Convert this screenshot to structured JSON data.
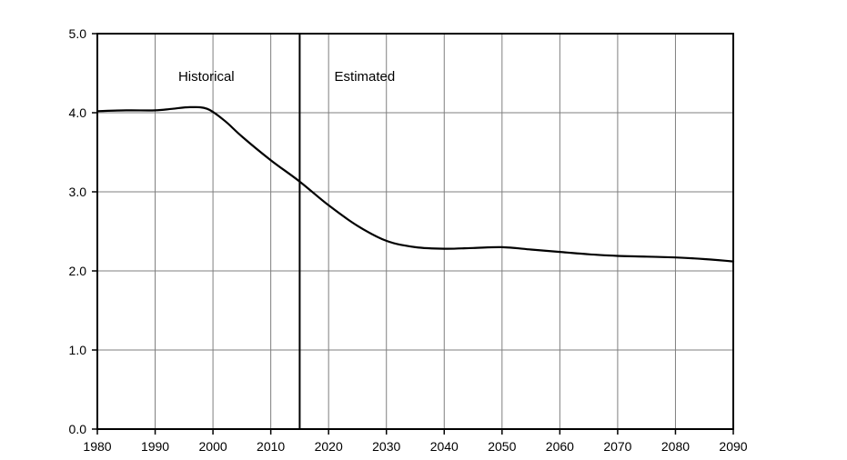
{
  "chart_data": {
    "type": "line",
    "title": "",
    "xlabel": "",
    "ylabel": "",
    "xlim": [
      1980,
      2090
    ],
    "ylim": [
      0,
      5
    ],
    "x_ticks": [
      1980,
      1990,
      2000,
      2010,
      2020,
      2030,
      2040,
      2050,
      2060,
      2070,
      2080,
      2090
    ],
    "x_tick_labels": [
      "1980",
      "1990",
      "2000",
      "2010",
      "2020",
      "2030",
      "2040",
      "2050",
      "2060",
      "2070",
      "2080",
      "2090"
    ],
    "y_ticks": [
      0,
      1,
      2,
      3,
      4,
      5
    ],
    "y_tick_labels": [
      "0.0",
      "1.0",
      "2.0",
      "3.0",
      "4.0",
      "5.0"
    ],
    "grid": true,
    "divider_x": 2015,
    "annotations": [
      {
        "text": "Historical",
        "x": 1994,
        "y": 4.4
      },
      {
        "text": "Estimated",
        "x": 2021,
        "y": 4.4
      }
    ],
    "series": [
      {
        "x": [
          1980,
          1985,
          1990,
          1993,
          1996,
          1999,
          2002,
          2005,
          2010,
          2015,
          2020,
          2025,
          2030,
          2035,
          2040,
          2045,
          2050,
          2055,
          2060,
          2065,
          2070,
          2075,
          2080,
          2085,
          2090
        ],
        "values": [
          4.02,
          4.03,
          4.03,
          4.05,
          4.07,
          4.05,
          3.9,
          3.7,
          3.4,
          3.13,
          2.83,
          2.57,
          2.38,
          2.3,
          2.28,
          2.29,
          2.3,
          2.27,
          2.24,
          2.21,
          2.19,
          2.18,
          2.17,
          2.15,
          2.12
        ],
        "color": "#000000"
      }
    ]
  }
}
